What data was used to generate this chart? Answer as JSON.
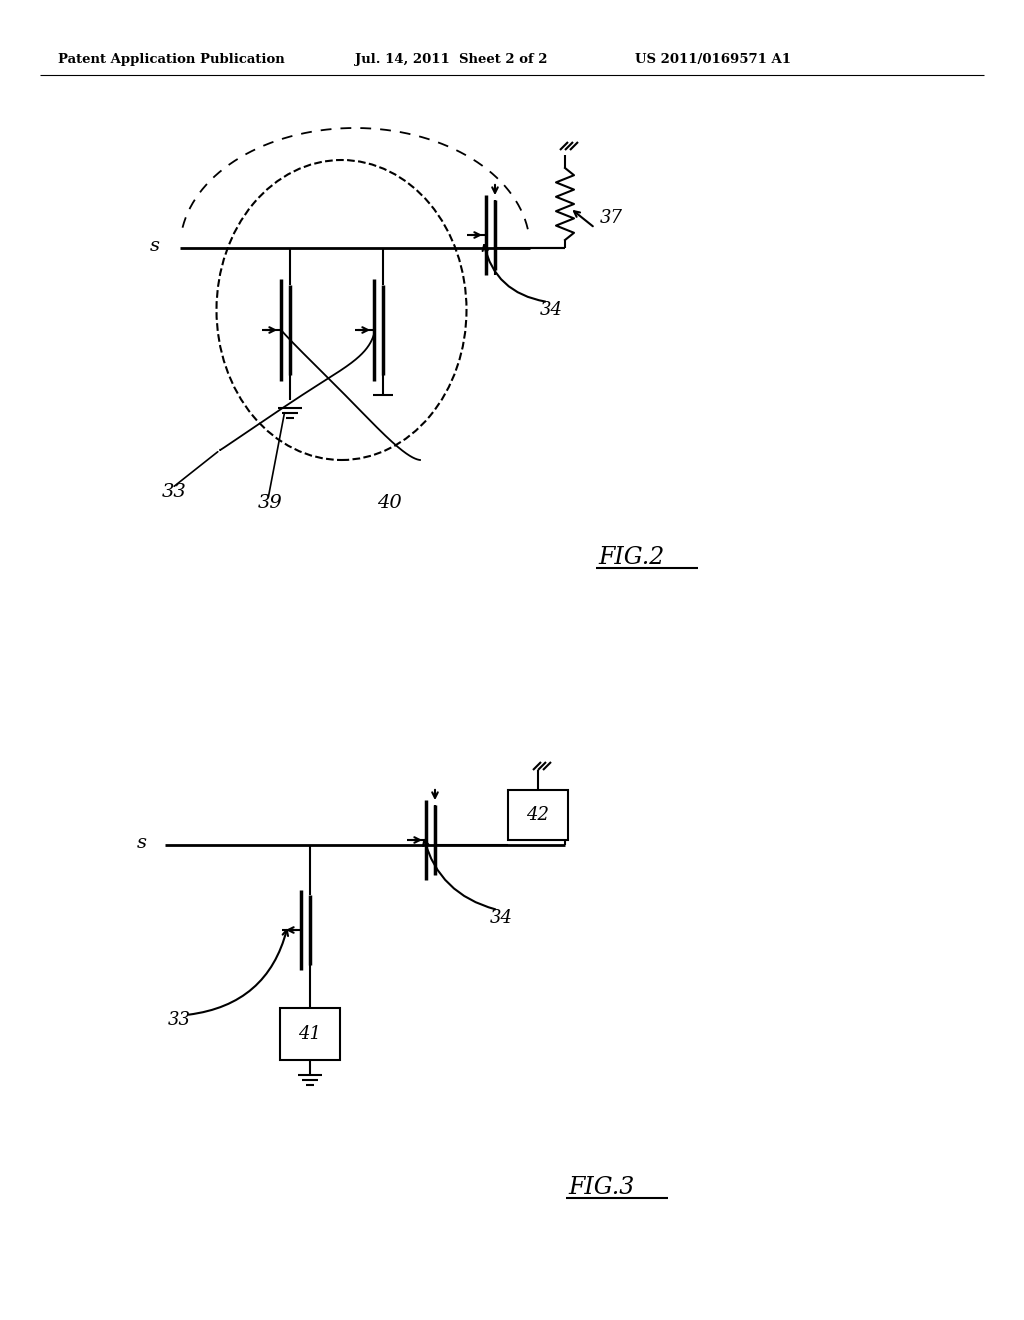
{
  "header_left": "Patent Application Publication",
  "header_mid": "Jul. 14, 2011  Sheet 2 of 2",
  "header_right": "US 2011/0169571 A1",
  "fig2_label": "FIG.2",
  "fig3_label": "FIG.3",
  "background": "#ffffff"
}
